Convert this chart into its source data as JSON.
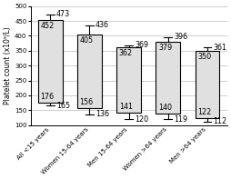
{
  "categories": [
    "All <15 years",
    "Women 15-64 years",
    "Men 15-64 years",
    "Women >64 years",
    "Men >64 years"
  ],
  "bar_bottom": [
    176,
    156,
    141,
    140,
    122
  ],
  "bar_top": [
    452,
    405,
    362,
    379,
    350
  ],
  "whisker_low": [
    165,
    136,
    120,
    119,
    112
  ],
  "whisker_high": [
    473,
    436,
    369,
    396,
    361
  ],
  "bar_color": "#e0e0e0",
  "bar_edgecolor": "#000000",
  "whisker_color": "#000000",
  "ylabel": "Platelet count (x10⁹/L)",
  "ylim": [
    100,
    500
  ],
  "yticks": [
    100,
    150,
    200,
    250,
    300,
    350,
    400,
    450,
    500
  ],
  "label_fontsize": 5.5,
  "tick_fontsize": 5.0,
  "value_fontsize": 5.8,
  "background_color": "#ffffff"
}
